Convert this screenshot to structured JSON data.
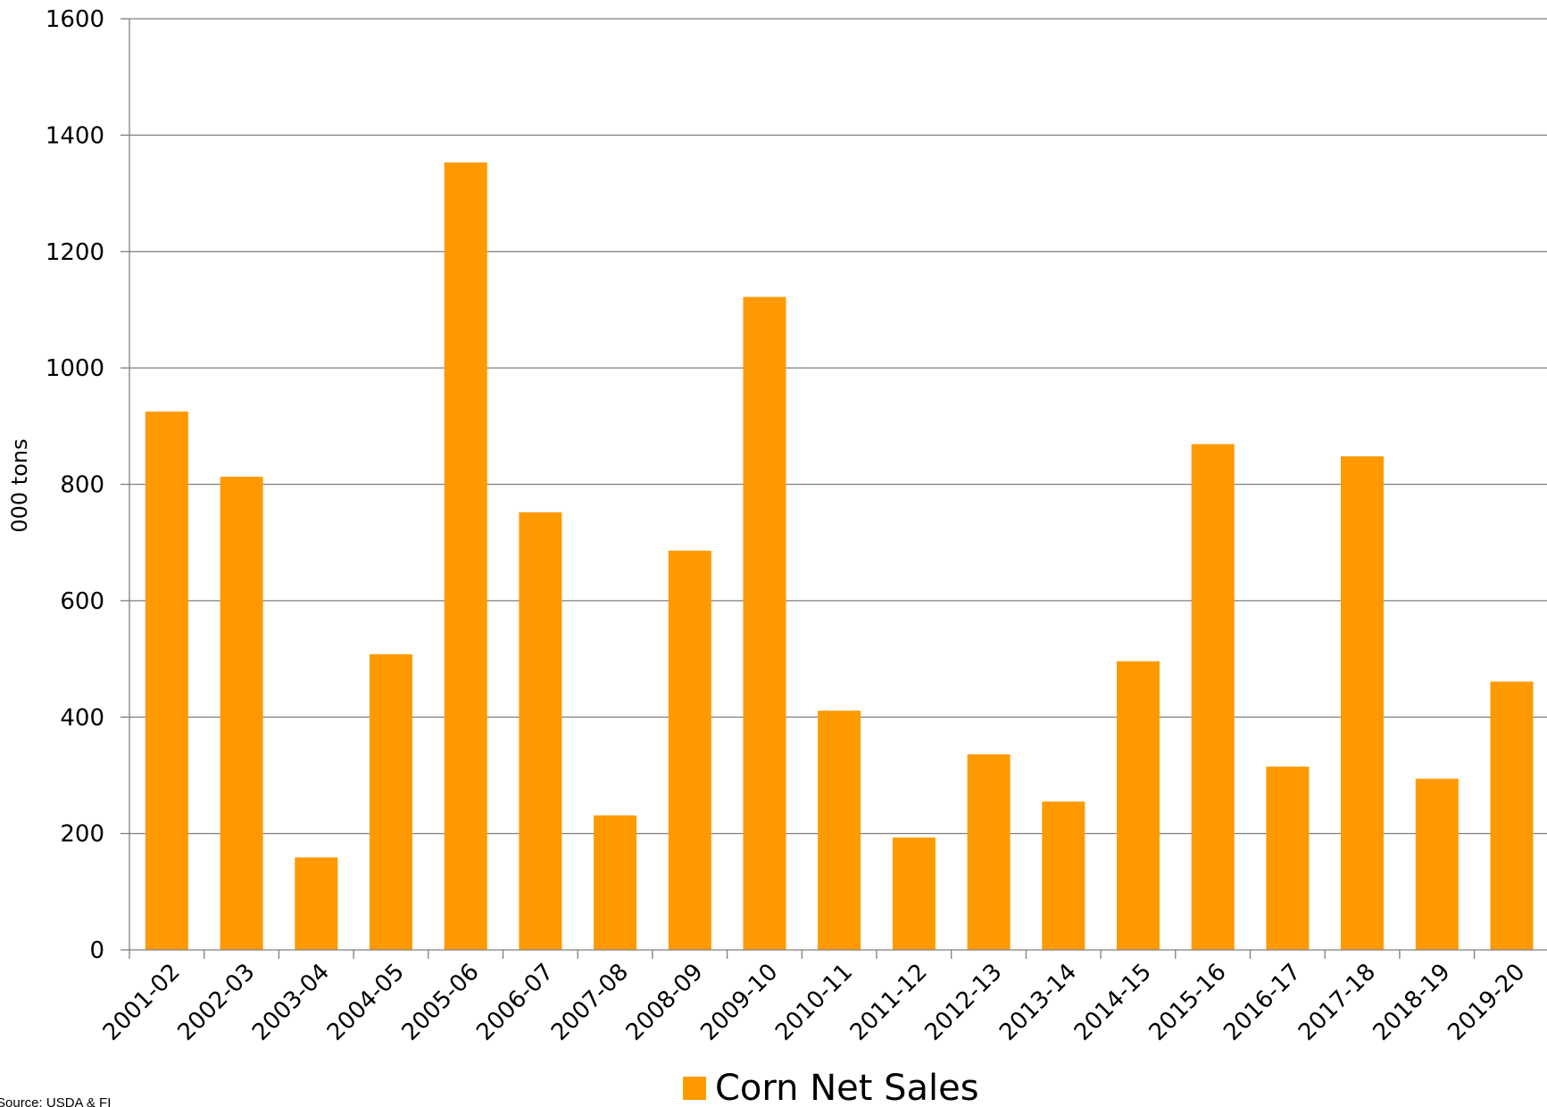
{
  "chart_data": {
    "type": "bar",
    "title": "",
    "xlabel": "",
    "ylabel": "000 tons",
    "ylim": [
      0,
      1600
    ],
    "yticks": [
      0,
      200,
      400,
      600,
      800,
      1000,
      1200,
      1400,
      1600
    ],
    "grid": true,
    "legend_position": "bottom-center",
    "categories": [
      "2001-02",
      "2002-03",
      "2003-04",
      "2004-05",
      "2005-06",
      "2006-07",
      "2007-08",
      "2008-09",
      "2009-10",
      "2010-11",
      "2011-12",
      "2012-13",
      "2013-14",
      "2014-15",
      "2015-16",
      "2016-17",
      "2017-18",
      "2018-19",
      "2019-20"
    ],
    "series": [
      {
        "name": "Corn Net Sales",
        "color": "#FF9900",
        "values": [
          925,
          813,
          159,
          508,
          1353,
          752,
          231,
          686,
          1122,
          411,
          193,
          336,
          255,
          496,
          869,
          315,
          848,
          294,
          461
        ]
      }
    ],
    "source": "Source: USDA & FI"
  }
}
